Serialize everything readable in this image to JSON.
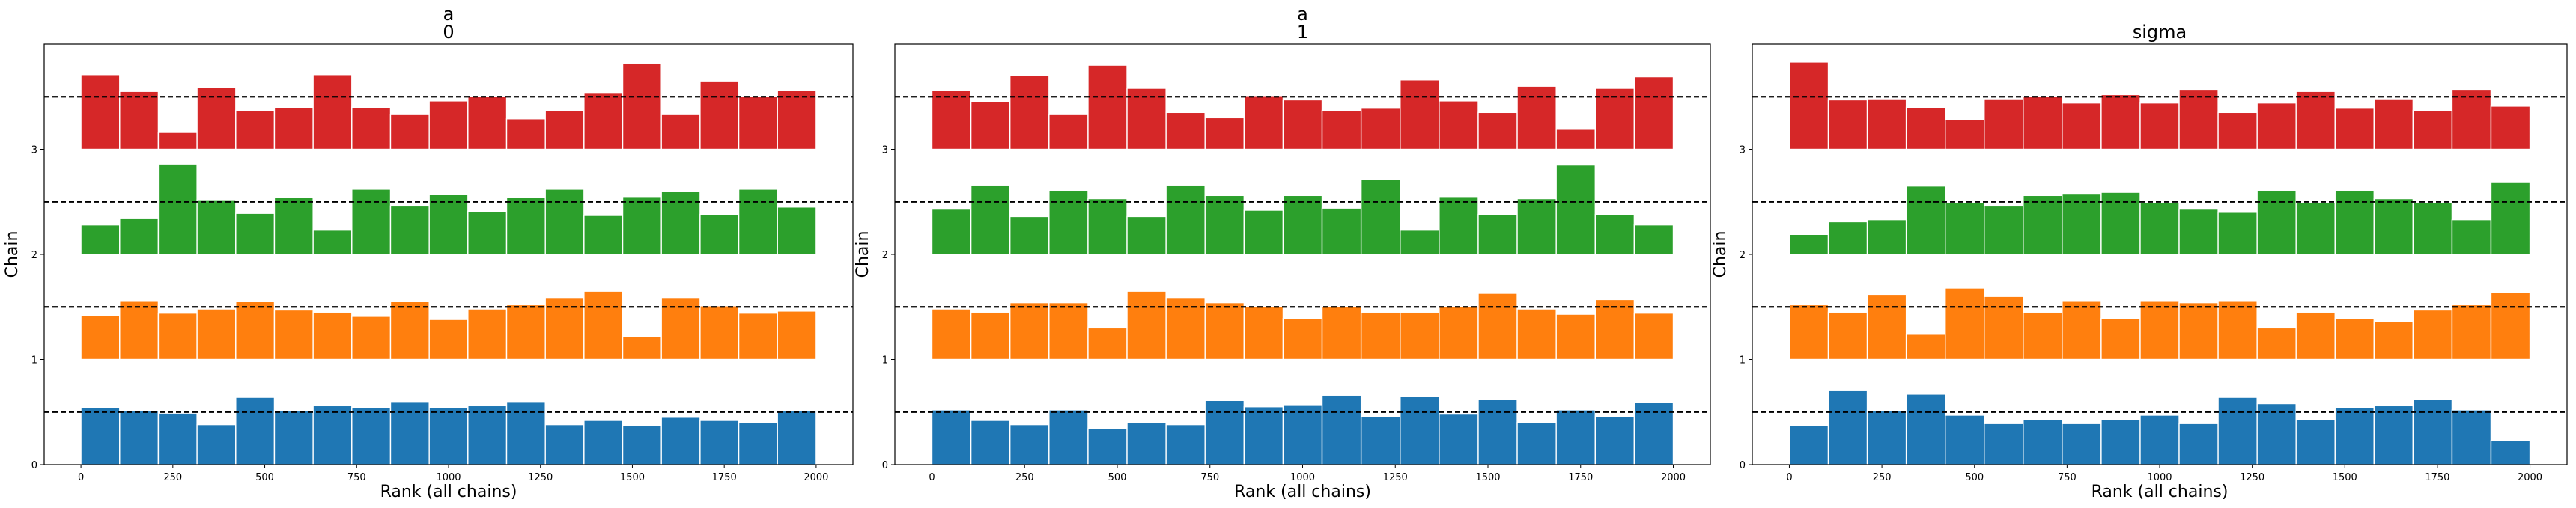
{
  "colors": {
    "chains": [
      "#1f77b4",
      "#ff7f0e",
      "#2ca02c",
      "#d62728"
    ],
    "reference_line": "#000000"
  },
  "chart_data": [
    {
      "type": "bar",
      "title_lines": [
        "a",
        "0"
      ],
      "xlabel": "Rank (all chains)",
      "ylabel": "Chain",
      "xlim": [
        -100,
        2100
      ],
      "ylim": [
        0,
        4
      ],
      "x_ticks": [
        0,
        250,
        500,
        750,
        1000,
        1250,
        1500,
        1750,
        2000
      ],
      "y_ticks": [
        0,
        1,
        2,
        3
      ],
      "bin_edges": [
        0,
        105.3,
        210.5,
        315.8,
        421.1,
        526.3,
        631.6,
        736.8,
        842.1,
        947.4,
        1052.6,
        1157.9,
        1263.2,
        1368.4,
        1473.7,
        1578.9,
        1684.2,
        1789.5,
        1894.7,
        2000
      ],
      "reference_lines": [
        0.5,
        1.5,
        2.5,
        3.5
      ],
      "series": [
        {
          "chain": 0,
          "baseline": 0,
          "values": [
            0.54,
            0.51,
            0.49,
            0.38,
            0.64,
            0.51,
            0.56,
            0.54,
            0.6,
            0.54,
            0.56,
            0.6,
            0.38,
            0.42,
            0.37,
            0.45,
            0.42,
            0.4,
            0.51
          ]
        },
        {
          "chain": 1,
          "baseline": 1,
          "values": [
            0.42,
            0.56,
            0.44,
            0.48,
            0.55,
            0.47,
            0.45,
            0.41,
            0.55,
            0.38,
            0.48,
            0.52,
            0.59,
            0.65,
            0.22,
            0.59,
            0.51,
            0.44,
            0.46
          ]
        },
        {
          "chain": 2,
          "baseline": 2,
          "values": [
            0.28,
            0.34,
            0.86,
            0.52,
            0.39,
            0.54,
            0.23,
            0.62,
            0.46,
            0.57,
            0.41,
            0.54,
            0.62,
            0.37,
            0.55,
            0.6,
            0.38,
            0.62,
            0.45
          ]
        },
        {
          "chain": 3,
          "baseline": 3,
          "values": [
            0.71,
            0.55,
            0.16,
            0.59,
            0.37,
            0.4,
            0.71,
            0.4,
            0.33,
            0.46,
            0.5,
            0.29,
            0.37,
            0.54,
            0.82,
            0.33,
            0.65,
            0.5,
            0.56
          ]
        }
      ]
    },
    {
      "type": "bar",
      "title_lines": [
        "a",
        "1"
      ],
      "xlabel": "Rank (all chains)",
      "ylabel": "Chain",
      "xlim": [
        -100,
        2100
      ],
      "ylim": [
        0,
        4
      ],
      "x_ticks": [
        0,
        250,
        500,
        750,
        1000,
        1250,
        1500,
        1750,
        2000
      ],
      "y_ticks": [
        0,
        1,
        2,
        3
      ],
      "bin_edges": [
        0,
        105.3,
        210.5,
        315.8,
        421.1,
        526.3,
        631.6,
        736.8,
        842.1,
        947.4,
        1052.6,
        1157.9,
        1263.2,
        1368.4,
        1473.7,
        1578.9,
        1684.2,
        1789.5,
        1894.7,
        2000
      ],
      "reference_lines": [
        0.5,
        1.5,
        2.5,
        3.5
      ],
      "series": [
        {
          "chain": 0,
          "baseline": 0,
          "values": [
            0.52,
            0.42,
            0.38,
            0.52,
            0.34,
            0.4,
            0.38,
            0.61,
            0.55,
            0.57,
            0.66,
            0.46,
            0.65,
            0.48,
            0.62,
            0.4,
            0.52,
            0.46,
            0.59
          ]
        },
        {
          "chain": 1,
          "baseline": 1,
          "values": [
            0.48,
            0.45,
            0.54,
            0.54,
            0.3,
            0.65,
            0.59,
            0.54,
            0.5,
            0.39,
            0.5,
            0.45,
            0.45,
            0.5,
            0.63,
            0.48,
            0.43,
            0.57,
            0.44
          ]
        },
        {
          "chain": 2,
          "baseline": 2,
          "values": [
            0.43,
            0.66,
            0.36,
            0.61,
            0.53,
            0.36,
            0.66,
            0.56,
            0.42,
            0.56,
            0.44,
            0.71,
            0.23,
            0.55,
            0.38,
            0.53,
            0.85,
            0.38,
            0.28
          ]
        },
        {
          "chain": 3,
          "baseline": 3,
          "values": [
            0.56,
            0.45,
            0.7,
            0.33,
            0.8,
            0.58,
            0.35,
            0.3,
            0.51,
            0.47,
            0.37,
            0.39,
            0.66,
            0.46,
            0.35,
            0.6,
            0.19,
            0.58,
            0.69
          ]
        }
      ]
    },
    {
      "type": "bar",
      "title_lines": [
        "sigma"
      ],
      "xlabel": "Rank (all chains)",
      "ylabel": "Chain",
      "xlim": [
        -100,
        2100
      ],
      "ylim": [
        0,
        4
      ],
      "x_ticks": [
        0,
        250,
        500,
        750,
        1000,
        1250,
        1500,
        1750,
        2000
      ],
      "y_ticks": [
        0,
        1,
        2,
        3
      ],
      "bin_edges": [
        0,
        105.3,
        210.5,
        315.8,
        421.1,
        526.3,
        631.6,
        736.8,
        842.1,
        947.4,
        1052.6,
        1157.9,
        1263.2,
        1368.4,
        1473.7,
        1578.9,
        1684.2,
        1789.5,
        1894.7,
        2000
      ],
      "reference_lines": [
        0.5,
        1.5,
        2.5,
        3.5
      ],
      "series": [
        {
          "chain": 0,
          "baseline": 0,
          "values": [
            0.37,
            0.71,
            0.51,
            0.67,
            0.47,
            0.39,
            0.43,
            0.39,
            0.43,
            0.47,
            0.39,
            0.64,
            0.58,
            0.43,
            0.54,
            0.56,
            0.62,
            0.52,
            0.23
          ]
        },
        {
          "chain": 1,
          "baseline": 1,
          "values": [
            0.52,
            0.45,
            0.62,
            0.24,
            0.68,
            0.6,
            0.45,
            0.56,
            0.39,
            0.56,
            0.54,
            0.56,
            0.3,
            0.45,
            0.39,
            0.36,
            0.47,
            0.52,
            0.64
          ]
        },
        {
          "chain": 2,
          "baseline": 2,
          "values": [
            0.19,
            0.31,
            0.33,
            0.65,
            0.49,
            0.46,
            0.56,
            0.58,
            0.59,
            0.49,
            0.43,
            0.4,
            0.61,
            0.49,
            0.61,
            0.53,
            0.49,
            0.33,
            0.69
          ]
        },
        {
          "chain": 3,
          "baseline": 3,
          "values": [
            0.83,
            0.47,
            0.48,
            0.4,
            0.28,
            0.48,
            0.5,
            0.44,
            0.52,
            0.44,
            0.57,
            0.35,
            0.44,
            0.55,
            0.39,
            0.48,
            0.37,
            0.57,
            0.41
          ]
        }
      ]
    }
  ]
}
